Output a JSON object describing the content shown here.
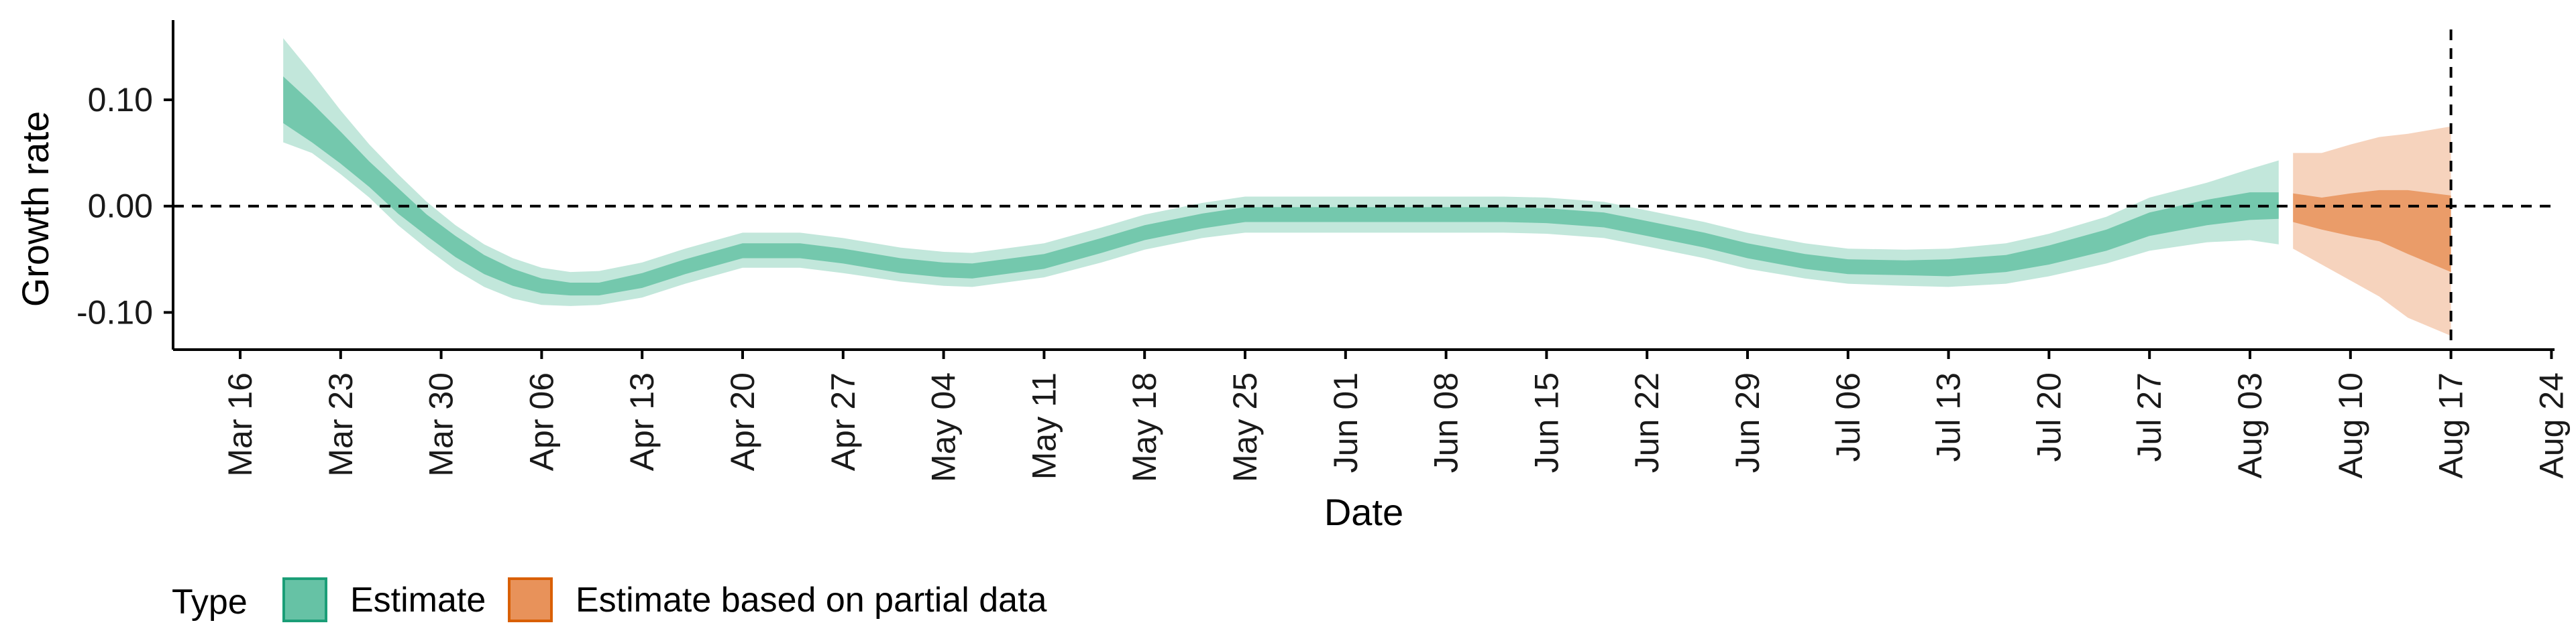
{
  "chart_data": {
    "type": "area",
    "ylabel": "Growth rate",
    "xlabel": "Date",
    "ylim": [
      -0.135,
      0.175
    ],
    "y_ticks": [
      {
        "value": 0.1,
        "label": "0.10"
      },
      {
        "value": 0.0,
        "label": "0.00"
      },
      {
        "value": -0.1,
        "label": "-0.10"
      }
    ],
    "x_ticks": [
      "Mar 16",
      "Mar 23",
      "Mar 30",
      "Apr 06",
      "Apr 13",
      "Apr 20",
      "Apr 27",
      "May 04",
      "May 11",
      "May 18",
      "May 25",
      "Jun 01",
      "Jun 08",
      "Jun 15",
      "Jun 22",
      "Jun 29",
      "Jul 06",
      "Jul 13",
      "Jul 20",
      "Jul 27",
      "Aug 03",
      "Aug 10",
      "Aug 17",
      "Aug 24"
    ],
    "x_start": "Mar 16",
    "reference_lines": {
      "y": 0,
      "x": "Aug 17",
      "style": "dashed"
    },
    "legend": {
      "title": "Type",
      "position": "bottom-left",
      "entries": [
        {
          "label": "Estimate",
          "color": "#66c2a5",
          "border": "#1b9e77"
        },
        {
          "label": "Estimate based on partial data",
          "color": "#e8925a",
          "border": "#d95f02"
        }
      ]
    },
    "series": [
      {
        "name": "Estimate",
        "color": "#66c2a5",
        "x": [
          "Mar 19",
          "Mar 21",
          "Mar 23",
          "Mar 25",
          "Mar 27",
          "Mar 29",
          "Mar 31",
          "Apr 02",
          "Apr 04",
          "Apr 06",
          "Apr 08",
          "Apr 10",
          "Apr 13",
          "Apr 16",
          "Apr 20",
          "Apr 24",
          "Apr 27",
          "May 01",
          "May 04",
          "May 06",
          "May 11",
          "May 15",
          "May 18",
          "May 22",
          "May 25",
          "May 29",
          "Jun 01",
          "Jun 05",
          "Jun 08",
          "Jun 12",
          "Jun 15",
          "Jun 19",
          "Jun 22",
          "Jun 26",
          "Jun 29",
          "Jul 03",
          "Jul 06",
          "Jul 10",
          "Jul 13",
          "Jul 17",
          "Jul 20",
          "Jul 24",
          "Jul 27",
          "Jul 31",
          "Aug 03",
          "Aug 05"
        ],
        "median": [
          0.1,
          0.078,
          0.055,
          0.03,
          0.005,
          -0.018,
          -0.038,
          -0.055,
          -0.067,
          -0.075,
          -0.078,
          -0.078,
          -0.07,
          -0.057,
          -0.042,
          -0.042,
          -0.047,
          -0.056,
          -0.06,
          -0.061,
          -0.052,
          -0.037,
          -0.025,
          -0.014,
          -0.008,
          -0.008,
          -0.008,
          -0.008,
          -0.008,
          -0.008,
          -0.009,
          -0.013,
          -0.021,
          -0.032,
          -0.042,
          -0.052,
          -0.057,
          -0.058,
          -0.058,
          -0.054,
          -0.046,
          -0.032,
          -0.017,
          -0.006,
          0.0,
          0.0
        ],
        "inner_lo": [
          0.078,
          0.06,
          0.04,
          0.018,
          -0.007,
          -0.028,
          -0.048,
          -0.064,
          -0.075,
          -0.082,
          -0.084,
          -0.084,
          -0.077,
          -0.064,
          -0.049,
          -0.049,
          -0.054,
          -0.063,
          -0.067,
          -0.068,
          -0.059,
          -0.044,
          -0.032,
          -0.021,
          -0.015,
          -0.015,
          -0.015,
          -0.015,
          -0.015,
          -0.015,
          -0.016,
          -0.02,
          -0.028,
          -0.039,
          -0.049,
          -0.059,
          -0.064,
          -0.065,
          -0.066,
          -0.062,
          -0.055,
          -0.042,
          -0.028,
          -0.018,
          -0.013,
          -0.012
        ],
        "inner_hi": [
          0.122,
          0.097,
          0.07,
          0.042,
          0.017,
          -0.008,
          -0.028,
          -0.046,
          -0.059,
          -0.068,
          -0.072,
          -0.072,
          -0.063,
          -0.05,
          -0.035,
          -0.035,
          -0.04,
          -0.049,
          -0.053,
          -0.054,
          -0.045,
          -0.03,
          -0.018,
          -0.007,
          -0.001,
          -0.001,
          -0.001,
          -0.001,
          -0.001,
          -0.001,
          -0.002,
          -0.006,
          -0.014,
          -0.025,
          -0.035,
          -0.045,
          -0.05,
          -0.051,
          -0.05,
          -0.046,
          -0.037,
          -0.022,
          -0.006,
          0.006,
          0.013,
          0.013
        ],
        "outer_lo": [
          0.06,
          0.05,
          0.03,
          0.008,
          -0.018,
          -0.04,
          -0.06,
          -0.076,
          -0.087,
          -0.093,
          -0.094,
          -0.093,
          -0.086,
          -0.073,
          -0.058,
          -0.058,
          -0.063,
          -0.071,
          -0.075,
          -0.076,
          -0.067,
          -0.053,
          -0.041,
          -0.03,
          -0.025,
          -0.025,
          -0.025,
          -0.025,
          -0.025,
          -0.025,
          -0.026,
          -0.03,
          -0.038,
          -0.049,
          -0.059,
          -0.068,
          -0.073,
          -0.075,
          -0.076,
          -0.073,
          -0.066,
          -0.054,
          -0.042,
          -0.034,
          -0.032,
          -0.036
        ],
        "outer_hi": [
          0.158,
          0.125,
          0.09,
          0.058,
          0.03,
          0.004,
          -0.018,
          -0.036,
          -0.049,
          -0.058,
          -0.062,
          -0.061,
          -0.053,
          -0.04,
          -0.025,
          -0.025,
          -0.03,
          -0.039,
          -0.043,
          -0.044,
          -0.035,
          -0.02,
          -0.008,
          0.003,
          0.009,
          0.009,
          0.009,
          0.009,
          0.009,
          0.009,
          0.008,
          0.004,
          -0.004,
          -0.015,
          -0.025,
          -0.035,
          -0.04,
          -0.041,
          -0.04,
          -0.035,
          -0.026,
          -0.01,
          0.008,
          0.022,
          0.035,
          0.043
        ]
      },
      {
        "name": "Estimate based on partial data",
        "color": "#e8925a",
        "x": [
          "Aug 06",
          "Aug 08",
          "Aug 10",
          "Aug 12",
          "Aug 14",
          "Aug 17"
        ],
        "median": [
          0.0,
          -0.005,
          -0.008,
          -0.01,
          -0.018,
          -0.022
        ],
        "inner_lo": [
          -0.015,
          -0.022,
          -0.028,
          -0.033,
          -0.045,
          -0.062
        ],
        "inner_hi": [
          0.012,
          0.008,
          0.012,
          0.015,
          0.015,
          0.01
        ],
        "outer_lo": [
          -0.04,
          -0.055,
          -0.07,
          -0.085,
          -0.105,
          -0.122
        ],
        "outer_hi": [
          0.05,
          0.05,
          0.058,
          0.065,
          0.068,
          0.075
        ]
      }
    ]
  }
}
